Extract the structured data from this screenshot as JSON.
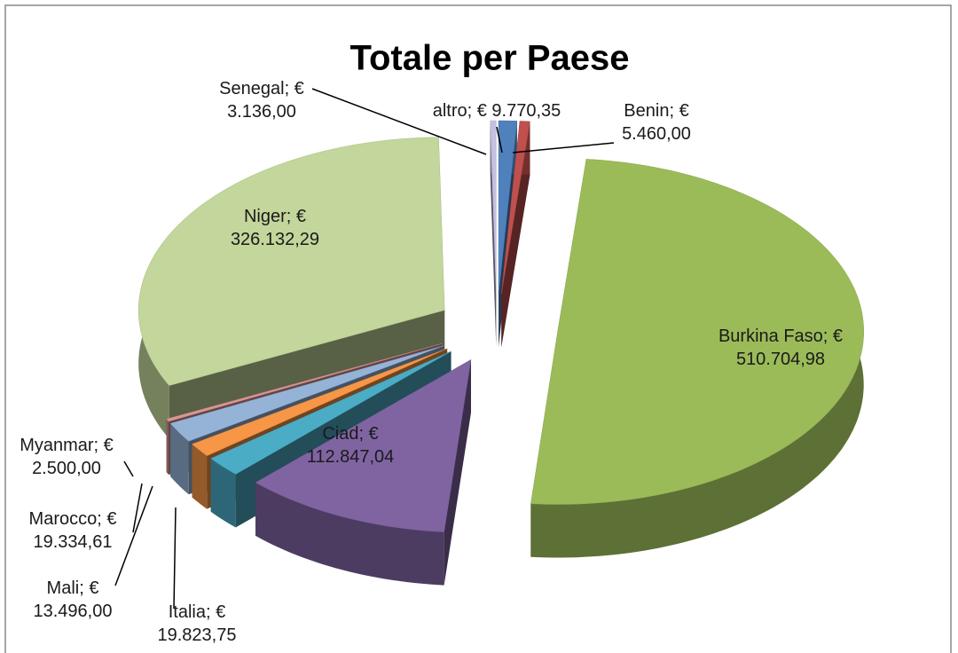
{
  "chart_data": {
    "type": "pie",
    "title": "Totale per Paese",
    "values": [
      9770.35,
      5460.0,
      510704.98,
      112847.04,
      19823.75,
      13496.0,
      19334.61,
      2500.0,
      326132.29,
      3136.0
    ],
    "value_labels": [
      "altro; € 9.770,35",
      "Benin; € 5.460,00",
      "Burkina Faso; € 510.704,98",
      "Ciad; € 112.847,04",
      "Italia; € 19.823,75",
      "Mali; € 13.496,00",
      "Marocco; € 19.334,61",
      "Myanmar; € 2.500,00",
      "Niger; € 326.132,29",
      "Senegal; € 3.136,00"
    ],
    "colors": [
      "#4f81bd",
      "#c0504d",
      "#9bbb59",
      "#8064a2",
      "#4bacc6",
      "#f79646",
      "#95b3d7",
      "#d99694",
      "#c3d69b",
      "#c6bfe0"
    ]
  }
}
